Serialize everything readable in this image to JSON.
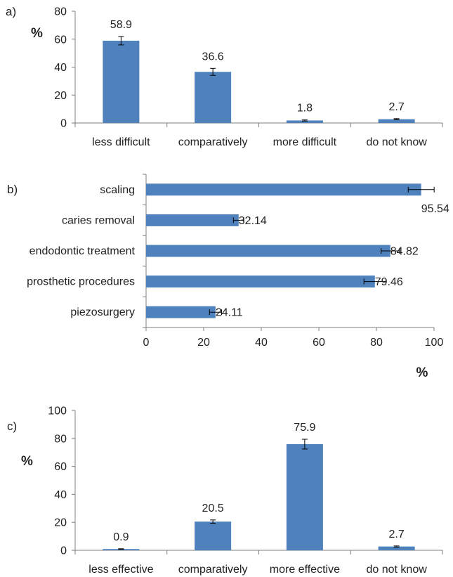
{
  "colors": {
    "bar": "#4f81bd",
    "axis": "#7f7f7f",
    "text": "#222222"
  },
  "chart_data": [
    {
      "type": "bar",
      "panel_label": "a)",
      "ylabel": "%",
      "categories": [
        "less difficult",
        "comparatively",
        "more difficult",
        "do not know"
      ],
      "values": [
        58.9,
        36.6,
        1.8,
        2.7
      ],
      "errors": [
        3.0,
        2.5,
        0.4,
        0.4
      ],
      "data_labels": [
        "58.9",
        "36.6",
        "1.8",
        "2.7"
      ],
      "ylim": [
        0,
        80
      ],
      "yticks": [
        "0",
        "20",
        "40",
        "60",
        "80"
      ],
      "grid": false
    },
    {
      "type": "bar",
      "orientation": "horizontal",
      "panel_label": "b)",
      "xlabel": "%",
      "categories": [
        "scaling",
        "caries removal",
        "endodontic treatment",
        "prosthetic procedures",
        "piezosurgery"
      ],
      "values": [
        95.54,
        32.14,
        84.82,
        79.46,
        24.11
      ],
      "errors": [
        4.5,
        1.8,
        3.2,
        3.8,
        2.1
      ],
      "data_labels": [
        "95.54",
        "32.14",
        "84.82",
        "79.46",
        "24.11"
      ],
      "xlim": [
        0,
        100
      ],
      "xticks": [
        "0",
        "20",
        "40",
        "60",
        "80",
        "100"
      ],
      "grid": false
    },
    {
      "type": "bar",
      "panel_label": "c)",
      "ylabel": "%",
      "categories": [
        "less effective",
        "comparatively",
        "more effective",
        "do not know"
      ],
      "values": [
        0.9,
        20.5,
        75.9,
        2.7
      ],
      "errors": [
        0.2,
        1.2,
        3.5,
        0.4
      ],
      "data_labels": [
        "0.9",
        "20.5",
        "75.9",
        "2.7"
      ],
      "ylim": [
        0,
        100
      ],
      "yticks": [
        "0",
        "20",
        "40",
        "60",
        "80",
        "100"
      ],
      "grid": false
    }
  ]
}
